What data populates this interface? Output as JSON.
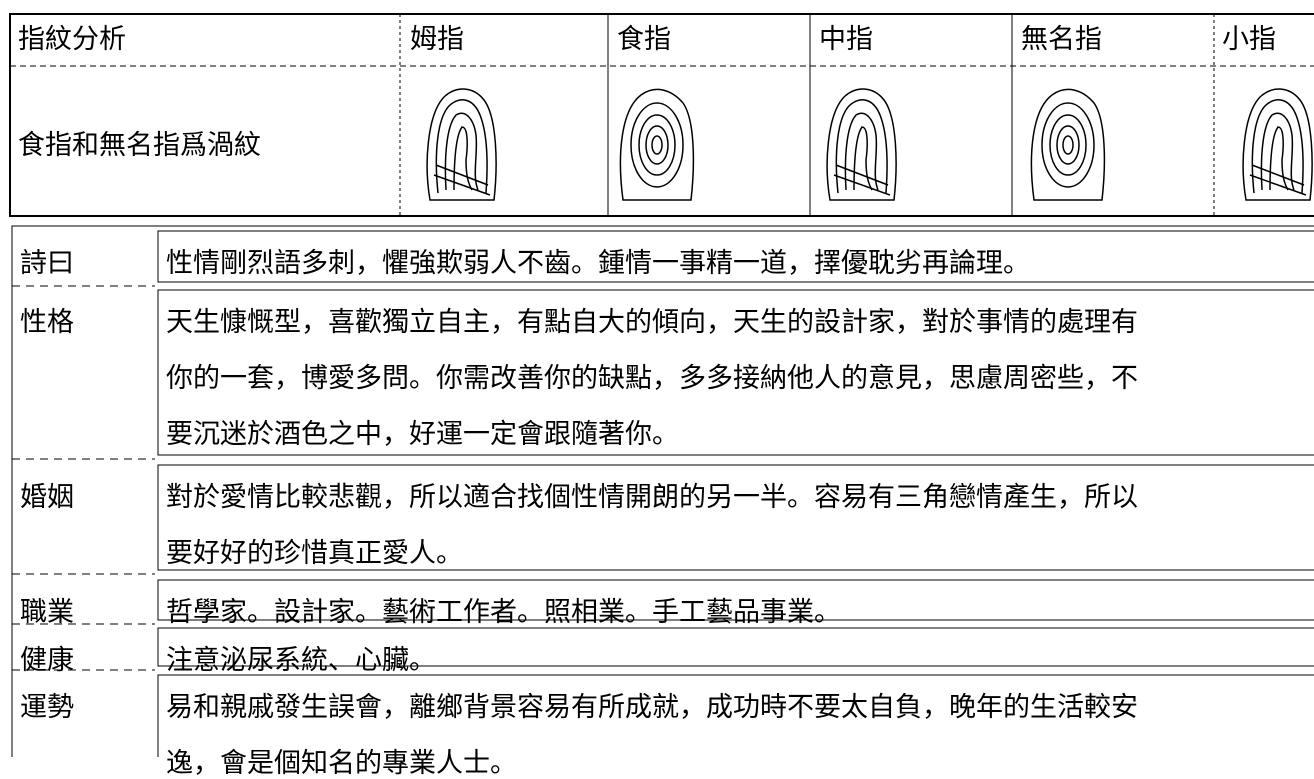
{
  "fingerprint_table": {
    "header": [
      "指紋分析",
      "姆指",
      "食指",
      "中指",
      "無名指",
      "小指"
    ],
    "summary": "食指和無名指爲渦紋"
  },
  "analysis": {
    "rows": [
      {
        "label": "詩曰",
        "lines": [
          "性情剛烈語多刺，懼強欺弱人不齒。鍾情一事精一道，擇優耽劣再論理。"
        ]
      },
      {
        "label": "性格",
        "lines": [
          "天生慷慨型，喜歡獨立自主，有點自大的傾向，天生的設計家，對於事情的處理有",
          "你的一套，博愛多問。你需改善你的缺點，多多接納他人的意見，思慮周密些，不",
          "要沉迷於酒色之中，好運一定會跟隨著你。"
        ]
      },
      {
        "label": "婚姻",
        "lines": [
          "對於愛情比較悲觀，所以適合找個性情開朗的另一半。容易有三角戀情產生，所以",
          "要好好的珍惜真正愛人。"
        ]
      },
      {
        "label": "職業",
        "lines": [
          "哲學家。設計家。藝術工作者。照相業。手工藝品事業。"
        ]
      },
      {
        "label": "健康",
        "lines": [
          "注意泌尿系統、心臟。"
        ]
      },
      {
        "label": "運勢",
        "lines": [
          "易和親戚發生誤會，離鄉背景容易有所成就，成功時不要太自負，晚年的生活較安",
          "逸，會是個知名的專業人士。"
        ]
      }
    ]
  }
}
